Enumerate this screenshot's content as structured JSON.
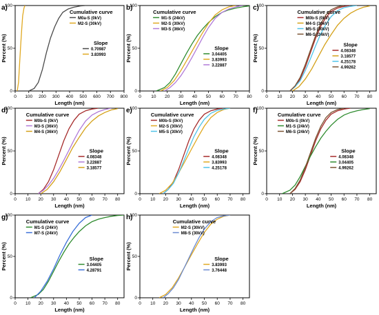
{
  "figure": {
    "x_label": "Length (nm)",
    "y_label": "Percent (%)",
    "y_ticks": [
      0,
      50,
      100
    ]
  },
  "chart_data": [
    {
      "id": "a",
      "panel_label": "a)",
      "type": "line",
      "legend_title": "Cumulative curve",
      "slope_title": "Slope",
      "xlim": [
        0,
        800
      ],
      "xticks": [
        0,
        100,
        200,
        300,
        400,
        500,
        600,
        700,
        800
      ],
      "ylim": [
        0,
        100
      ],
      "xlabel": "Length (nm)",
      "ylabel": "Percent (%)",
      "series": [
        {
          "name": "M0a-S (0kV)",
          "color": "#4a4a4a",
          "slope": "0.70987",
          "x": [
            100,
            140,
            170,
            200,
            230,
            260,
            290,
            320,
            350,
            390,
            430,
            480,
            520
          ],
          "y": [
            0,
            3,
            10,
            25,
            45,
            62,
            75,
            85,
            92,
            96,
            98,
            99.5,
            100
          ]
        },
        {
          "name": "M2-S (30kV)",
          "color": "#e0a820",
          "slope": "3.83993",
          "x": [
            15,
            25,
            32,
            40,
            48,
            55,
            65,
            72
          ],
          "y": [
            0,
            10,
            30,
            52,
            72,
            88,
            97,
            100
          ]
        }
      ]
    },
    {
      "id": "b",
      "panel_label": "b)",
      "type": "line",
      "legend_title": "Cumulative curve",
      "slope_title": "Slope",
      "xlim": [
        0,
        80
      ],
      "xticks": [
        0,
        10,
        20,
        30,
        40,
        50,
        60,
        70,
        80
      ],
      "ylim": [
        0,
        100
      ],
      "xlabel": "Length (nm)",
      "ylabel": "Percent (%)",
      "series": [
        {
          "name": "M1-S (24kV)",
          "color": "#2e8b2e",
          "slope": "3.04405",
          "x": [
            12,
            18,
            22,
            26,
            30,
            34,
            38,
            42,
            46,
            50,
            55,
            60,
            65,
            70,
            75,
            80
          ],
          "y": [
            0,
            4,
            10,
            20,
            32,
            44,
            55,
            65,
            73,
            80,
            87,
            92,
            95,
            97,
            98.5,
            99.5
          ]
        },
        {
          "name": "M2-S (30kV)",
          "color": "#e0a820",
          "slope": "3.83993",
          "x": [
            15,
            20,
            25,
            30,
            35,
            40,
            45,
            50,
            55,
            60,
            65,
            70
          ],
          "y": [
            0,
            4,
            12,
            24,
            38,
            52,
            66,
            79,
            89,
            95,
            98.5,
            100
          ]
        },
        {
          "name": "M3-S (36kV)",
          "color": "#b07ad8",
          "slope": "3.22887",
          "x": [
            18,
            22,
            26,
            30,
            34,
            38,
            42,
            46,
            50,
            55,
            60,
            65,
            70,
            75
          ],
          "y": [
            0,
            4,
            10,
            18,
            28,
            39,
            51,
            63,
            74,
            85,
            92,
            96,
            98.5,
            100
          ]
        }
      ]
    },
    {
      "id": "c",
      "panel_label": "c)",
      "type": "line",
      "legend_title": "Cumulative curve",
      "slope_title": "Slope",
      "xlim": [
        0,
        85
      ],
      "xticks": [
        0,
        10,
        20,
        30,
        40,
        50,
        60,
        70,
        80
      ],
      "ylim": [
        0,
        100
      ],
      "xlabel": "Length (nm)",
      "ylabel": "Percent (%)",
      "series": [
        {
          "name": "M0b-S (0kV)",
          "color": "#a52a2a",
          "slope": "4.08348",
          "x": [
            18,
            22,
            26,
            30,
            34,
            38,
            42,
            46,
            50,
            55,
            60,
            65
          ],
          "y": [
            0,
            5,
            14,
            28,
            45,
            62,
            76,
            86,
            93,
            97,
            99,
            100
          ]
        },
        {
          "name": "M4-S (36kV)",
          "color": "#d4a017",
          "slope": "3.18577",
          "x": [
            20,
            25,
            30,
            35,
            40,
            45,
            50,
            55,
            60,
            65,
            70,
            75,
            80
          ],
          "y": [
            0,
            5,
            14,
            26,
            40,
            54,
            66,
            77,
            85,
            91,
            95,
            98,
            99.5
          ]
        },
        {
          "name": "M5-S (30kV)",
          "color": "#4fc3e8",
          "slope": "4.25178",
          "x": [
            18,
            22,
            26,
            30,
            34,
            38,
            42,
            46,
            50,
            55,
            60,
            65,
            70
          ],
          "y": [
            0,
            5,
            12,
            24,
            38,
            53,
            67,
            78,
            87,
            94,
            97.5,
            99,
            100
          ]
        },
        {
          "name": "M6-S (24kV)",
          "color": "#7a5230",
          "slope": "4.99262",
          "x": [
            18,
            22,
            26,
            30,
            34,
            38,
            42,
            46,
            50,
            55,
            60
          ],
          "y": [
            0,
            6,
            16,
            31,
            48,
            65,
            79,
            89,
            95,
            98.5,
            100
          ]
        }
      ]
    },
    {
      "id": "d",
      "panel_label": "d)",
      "type": "line",
      "legend_title": "Cumulative curve",
      "slope_title": "Slope",
      "xlim": [
        0,
        85
      ],
      "xticks": [
        0,
        10,
        20,
        30,
        40,
        50,
        60,
        70,
        80
      ],
      "ylim": [
        0,
        100
      ],
      "xlabel": "Length (nm)",
      "ylabel": "Percent (%)",
      "series": [
        {
          "name": "M0b-S (0kV)",
          "color": "#a52a2a",
          "slope": "4.08348",
          "x": [
            18,
            22,
            26,
            30,
            34,
            38,
            42,
            46,
            50,
            55,
            60,
            65
          ],
          "y": [
            0,
            5,
            14,
            28,
            45,
            62,
            76,
            86,
            93,
            97,
            99,
            100
          ]
        },
        {
          "name": "M3-S (36kV)",
          "color": "#b07ad8",
          "slope": "3.22887",
          "x": [
            18,
            22,
            26,
            30,
            34,
            38,
            42,
            46,
            50,
            55,
            60,
            65,
            70,
            75
          ],
          "y": [
            0,
            4,
            10,
            18,
            28,
            39,
            51,
            63,
            74,
            85,
            92,
            96,
            98.5,
            100
          ]
        },
        {
          "name": "M4-S (36kV)",
          "color": "#d4a017",
          "slope": "3.18577",
          "x": [
            20,
            25,
            30,
            35,
            40,
            45,
            50,
            55,
            60,
            65,
            70,
            75,
            80
          ],
          "y": [
            0,
            5,
            14,
            26,
            40,
            54,
            66,
            77,
            85,
            91,
            95,
            98,
            99.5
          ]
        }
      ]
    },
    {
      "id": "e",
      "panel_label": "e)",
      "type": "line",
      "legend_title": "Cumulative curve",
      "slope_title": "Slope",
      "xlim": [
        0,
        85
      ],
      "xticks": [
        0,
        10,
        20,
        30,
        40,
        50,
        60,
        70,
        80
      ],
      "ylim": [
        0,
        100
      ],
      "xlabel": "Length (nm)",
      "ylabel": "Percent (%)",
      "series": [
        {
          "name": "M0b-S (0kV)",
          "color": "#a52a2a",
          "slope": "4.08348",
          "x": [
            18,
            22,
            26,
            30,
            34,
            38,
            42,
            46,
            50,
            55,
            60,
            65
          ],
          "y": [
            0,
            5,
            14,
            28,
            45,
            62,
            76,
            86,
            93,
            97,
            99,
            100
          ]
        },
        {
          "name": "M2-S (30kV)",
          "color": "#e0a820",
          "slope": "3.83993",
          "x": [
            15,
            20,
            25,
            30,
            35,
            40,
            45,
            50,
            55,
            60,
            65,
            70
          ],
          "y": [
            0,
            4,
            12,
            24,
            38,
            52,
            66,
            79,
            89,
            95,
            98.5,
            100
          ]
        },
        {
          "name": "M5-S (30kV)",
          "color": "#4fc3e8",
          "slope": "4.25178",
          "x": [
            18,
            22,
            26,
            30,
            34,
            38,
            42,
            46,
            50,
            55,
            60,
            65,
            70
          ],
          "y": [
            0,
            5,
            12,
            24,
            38,
            53,
            67,
            78,
            87,
            94,
            97.5,
            99,
            100
          ]
        }
      ]
    },
    {
      "id": "f",
      "panel_label": "f)",
      "type": "line",
      "legend_title": "Cumulative curve",
      "slope_title": "Slope",
      "xlim": [
        0,
        85
      ],
      "xticks": [
        0,
        10,
        20,
        30,
        40,
        50,
        60,
        70,
        80
      ],
      "ylim": [
        0,
        100
      ],
      "xlabel": "Length (nm)",
      "ylabel": "Percent (%)",
      "series": [
        {
          "name": "M0b-S (0kV)",
          "color": "#a52a2a",
          "slope": "4.08348",
          "x": [
            18,
            22,
            26,
            30,
            34,
            38,
            42,
            46,
            50,
            55,
            60,
            65
          ],
          "y": [
            0,
            5,
            14,
            28,
            45,
            62,
            76,
            86,
            93,
            97,
            99,
            100
          ]
        },
        {
          "name": "M1-S (24kV)",
          "color": "#2e8b2e",
          "slope": "3.04405",
          "x": [
            12,
            18,
            22,
            26,
            30,
            34,
            38,
            42,
            46,
            50,
            55,
            60,
            65,
            70,
            75,
            80
          ],
          "y": [
            0,
            4,
            10,
            20,
            32,
            44,
            55,
            65,
            73,
            80,
            87,
            92,
            95,
            97,
            98.5,
            99.5
          ]
        },
        {
          "name": "M6-S (24kV)",
          "color": "#7a5230",
          "slope": "4.99262",
          "x": [
            18,
            22,
            26,
            30,
            34,
            38,
            42,
            46,
            50,
            55,
            60
          ],
          "y": [
            0,
            6,
            16,
            31,
            48,
            65,
            79,
            89,
            95,
            98.5,
            100
          ]
        }
      ]
    },
    {
      "id": "g",
      "panel_label": "g)",
      "type": "line",
      "legend_title": "Cumulative curve",
      "slope_title": "Slope",
      "xlim": [
        0,
        85
      ],
      "xticks": [
        0,
        10,
        20,
        30,
        40,
        50,
        60,
        70,
        80
      ],
      "ylim": [
        0,
        100
      ],
      "xlabel": "Length (nm)",
      "ylabel": "Percent (%)",
      "series": [
        {
          "name": "M1-S (24kV)",
          "color": "#2e8b2e",
          "slope": "3.04405",
          "x": [
            12,
            18,
            22,
            26,
            30,
            34,
            38,
            42,
            46,
            50,
            55,
            60,
            65,
            70,
            75,
            80,
            85
          ],
          "y": [
            0,
            4,
            10,
            20,
            32,
            44,
            55,
            65,
            73,
            80,
            87,
            92,
            95,
            97,
            98.5,
            99.5,
            100
          ]
        },
        {
          "name": "M7-S (24kV)",
          "color": "#3a6fd8",
          "slope": "4.28791",
          "x": [
            15,
            20,
            25,
            30,
            35,
            40,
            45,
            50,
            55,
            60
          ],
          "y": [
            0,
            8,
            20,
            35,
            52,
            67,
            80,
            90,
            97,
            100
          ]
        }
      ]
    },
    {
      "id": "h",
      "panel_label": "h)",
      "type": "line",
      "legend_title": "Cumulative curve",
      "slope_title": "Slope",
      "xlim": [
        0,
        85
      ],
      "xticks": [
        0,
        10,
        20,
        30,
        40,
        50,
        60,
        70,
        80
      ],
      "ylim": [
        0,
        100
      ],
      "xlabel": "Length (nm)",
      "ylabel": "Percent (%)",
      "series": [
        {
          "name": "M2-S (30kV)",
          "color": "#e0a820",
          "slope": "3.83993",
          "x": [
            15,
            20,
            25,
            30,
            35,
            40,
            45,
            50,
            55,
            60,
            65,
            70
          ],
          "y": [
            0,
            4,
            12,
            24,
            38,
            52,
            66,
            79,
            89,
            95,
            98.5,
            100
          ]
        },
        {
          "name": "M8-S (30kV)",
          "color": "#6a8ad0",
          "slope": "3.76448",
          "x": [
            18,
            22,
            26,
            30,
            34,
            38,
            42,
            46,
            50,
            55,
            60,
            65,
            70
          ],
          "y": [
            0,
            5,
            12,
            22,
            35,
            48,
            61,
            73,
            83,
            92,
            97,
            99,
            100
          ]
        }
      ]
    }
  ]
}
